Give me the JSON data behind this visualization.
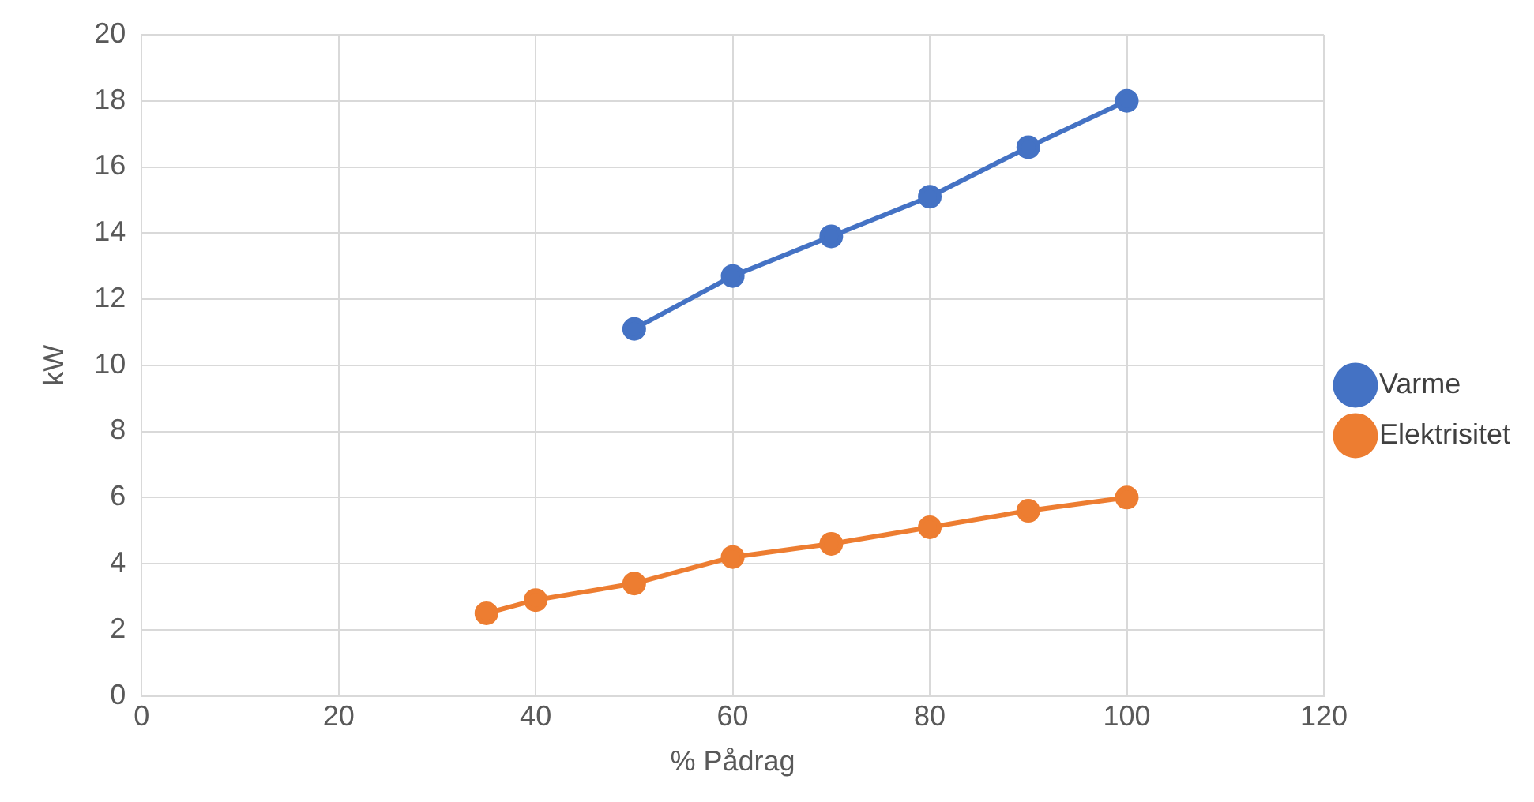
{
  "chart_data": {
    "type": "line",
    "xlabel": "% Pådrag",
    "ylabel": "kW",
    "xlim": [
      0,
      120
    ],
    "xticks": [
      0,
      20,
      40,
      60,
      80,
      100,
      120
    ],
    "ylim": [
      0,
      20
    ],
    "yticks": [
      0,
      2,
      4,
      6,
      8,
      10,
      12,
      14,
      16,
      18,
      20
    ],
    "grid": true,
    "legend": "right",
    "marker": "circle",
    "line_style": "solid",
    "series": [
      {
        "name": "Varme",
        "color": "#4472c4",
        "x": [
          50,
          60,
          70,
          80,
          90,
          100
        ],
        "values": [
          11.1,
          12.7,
          13.9,
          15.1,
          16.6,
          18.0
        ]
      },
      {
        "name": "Elektrisitet",
        "color": "#ed7d31",
        "x": [
          35,
          40,
          50,
          60,
          70,
          80,
          90,
          100
        ],
        "values": [
          2.5,
          2.9,
          3.4,
          4.2,
          4.6,
          5.1,
          5.6,
          6.0
        ]
      }
    ]
  }
}
